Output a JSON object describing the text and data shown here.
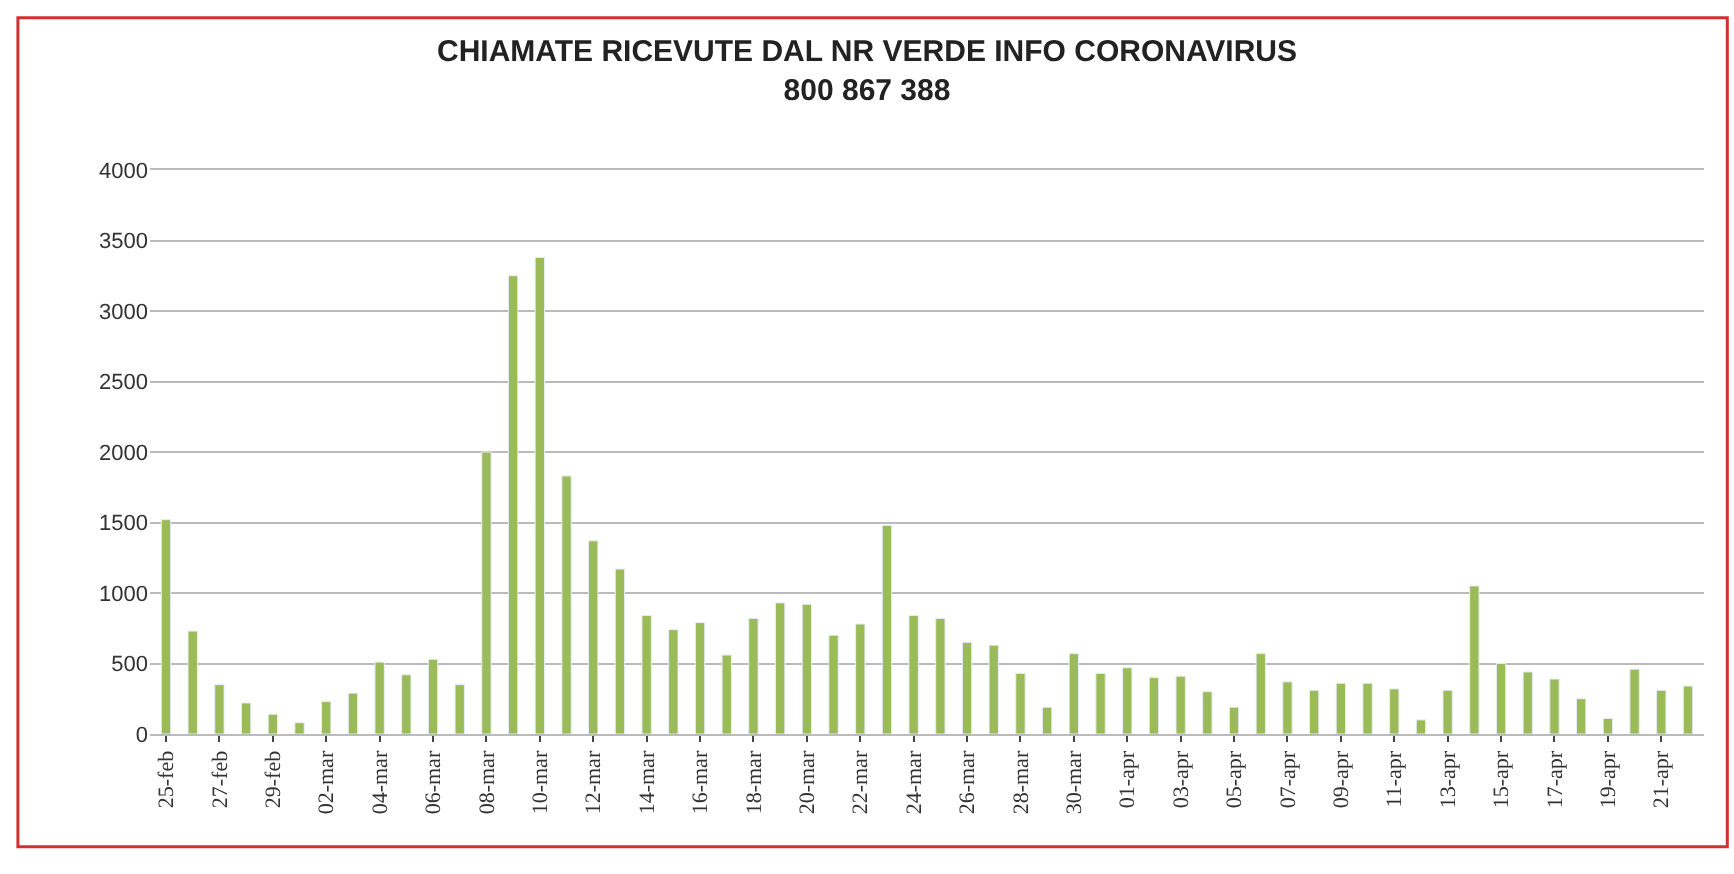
{
  "chart_data": {
    "type": "bar",
    "title": "CHIAMATE RICEVUTE DAL NR VERDE INFO CORONAVIRUS\n800 867 388",
    "categories": [
      "25-feb",
      null,
      "27-feb",
      null,
      "29-feb",
      null,
      "02-mar",
      null,
      "04-mar",
      null,
      "06-mar",
      null,
      "08-mar",
      null,
      "10-mar",
      null,
      "12-mar",
      null,
      "14-mar",
      null,
      "16-mar",
      null,
      "18-mar",
      null,
      "20-mar",
      null,
      "22-mar",
      null,
      "24-mar",
      null,
      "26-mar",
      null,
      "28-mar",
      null,
      "30-mar",
      null,
      "01-apr",
      null,
      "03-apr",
      null,
      "05-apr",
      null,
      "07-apr",
      null,
      "09-apr",
      null,
      "11-apr",
      null,
      "13-apr",
      null,
      "15-apr",
      null,
      "17-apr",
      null,
      "19-apr",
      null,
      "21-apr",
      null
    ],
    "values": [
      1520,
      730,
      350,
      220,
      140,
      80,
      230,
      290,
      510,
      420,
      530,
      350,
      2000,
      3250,
      3380,
      1830,
      1370,
      1170,
      840,
      740,
      790,
      560,
      820,
      930,
      920,
      700,
      780,
      1480,
      840,
      820,
      650,
      630,
      430,
      190,
      570,
      430,
      470,
      400,
      410,
      300,
      190,
      570,
      370,
      310,
      360,
      360,
      320,
      100,
      310,
      1050,
      500,
      440,
      390,
      250,
      110,
      460,
      310,
      340
    ],
    "color": "#9bbb59",
    "ylim": [
      0,
      4000
    ],
    "yticks": [
      0,
      500,
      1000,
      1500,
      2000,
      2500,
      3000,
      3500,
      4000
    ],
    "grid": "y"
  }
}
